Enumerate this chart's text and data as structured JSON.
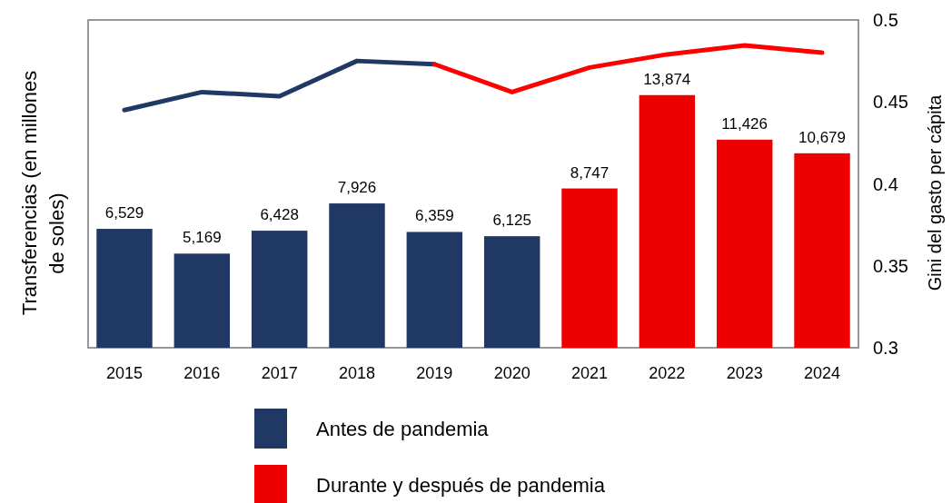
{
  "chart_data": {
    "type": "bar",
    "categories": [
      "2015",
      "2016",
      "2017",
      "2018",
      "2019",
      "2020",
      "2021",
      "2022",
      "2023",
      "2024"
    ],
    "ylabel": "Transferencias (en millones de soles)",
    "y2label": "Gini del gasto per cápita",
    "ylim": [
      0,
      18000
    ],
    "y2lim": [
      0.3,
      0.5
    ],
    "y2ticks": [
      0.3,
      0.35,
      0.4,
      0.45,
      0.5
    ],
    "legend": "bottom",
    "series": [
      {
        "name": "Antes de pandemia",
        "color": "#203864",
        "values": [
          6529,
          5169,
          6428,
          7926,
          6359,
          6125,
          null,
          null,
          null,
          null
        ],
        "value_labels": [
          "6,529",
          "5,169",
          "6,428",
          "7,926",
          "6,359",
          "6,125",
          null,
          null,
          null,
          null
        ]
      },
      {
        "name": "Durante y después de pandemia",
        "color": "#ee0000",
        "values": [
          null,
          null,
          null,
          null,
          null,
          null,
          8747,
          13874,
          11426,
          10679
        ],
        "value_labels": [
          null,
          null,
          null,
          null,
          null,
          null,
          "8,747",
          "13,874",
          "11,426",
          "10,679"
        ]
      },
      {
        "type": "line",
        "axis": "y2",
        "color": "#203864",
        "values": [
          0.445,
          0.456,
          0.4535,
          0.475,
          0.473,
          null,
          null,
          null,
          null,
          null
        ]
      },
      {
        "type": "line",
        "axis": "y2",
        "color": "#ff0000",
        "values": [
          null,
          null,
          null,
          null,
          0.473,
          0.456,
          0.471,
          0.479,
          0.4845,
          0.48
        ]
      }
    ]
  }
}
